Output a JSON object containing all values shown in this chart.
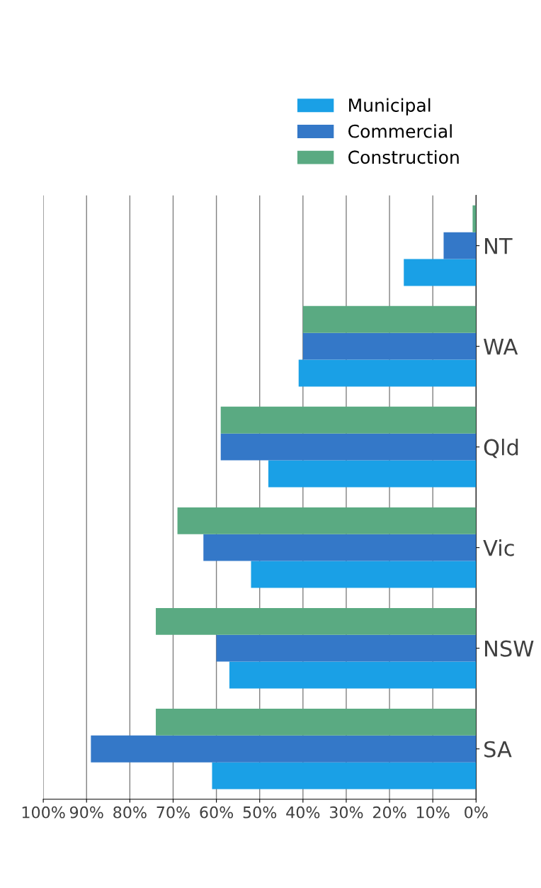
{
  "chart_data": {
    "type": "bar",
    "orientation": "horizontal",
    "categories": [
      "NT",
      "WA",
      "Qld",
      "Vic",
      "NSW",
      "SA"
    ],
    "series": [
      {
        "name": "Municipal",
        "color": "#1aa0e6",
        "values": [
          16.7,
          41,
          48,
          52,
          57,
          61
        ]
      },
      {
        "name": "Commercial",
        "color": "#3478c8",
        "values": [
          7.5,
          40,
          59,
          63,
          60,
          89
        ]
      },
      {
        "name": "Construction",
        "color": "#5aaa82",
        "values": [
          0.8,
          40,
          59,
          69,
          74,
          74
        ]
      }
    ],
    "xlim": [
      100,
      0
    ],
    "xticks": [
      {
        "value": 100,
        "label": "100%"
      },
      {
        "value": 90,
        "label": "90%"
      },
      {
        "value": 80,
        "label": "80%"
      },
      {
        "value": 70,
        "label": "70%"
      },
      {
        "value": 60,
        "label": "60%"
      },
      {
        "value": 50,
        "label": "50%"
      },
      {
        "value": 40,
        "label": "40%"
      },
      {
        "value": 30,
        "label": "30%"
      },
      {
        "value": 20,
        "label": "20%"
      },
      {
        "value": 10,
        "label": "10%"
      },
      {
        "value": 0,
        "label": "0%"
      }
    ],
    "grid": "x",
    "legend": "top right"
  }
}
